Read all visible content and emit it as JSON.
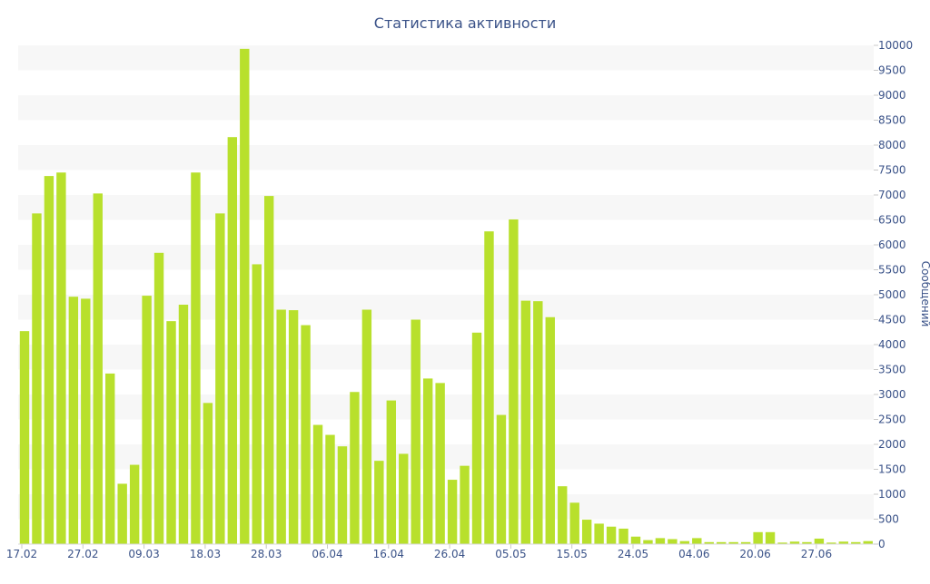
{
  "chart_data": {
    "type": "bar",
    "title": "Статистика активности",
    "xlabel": "",
    "ylabel": "Сообщений",
    "ylim": [
      0,
      10000
    ],
    "y_axis_position": "right",
    "grid": "alternating-horizontal-bands",
    "colors": {
      "bar": "#b8e02c",
      "text": "#3a5288",
      "band": "#f7f7f7"
    },
    "yticks": [
      "0",
      "500",
      "1000",
      "1500",
      "2000",
      "2500",
      "3000",
      "3500",
      "4000",
      "4500",
      "5000",
      "5500",
      "6000",
      "6500",
      "7000",
      "7500",
      "8000",
      "8500",
      "9000",
      "9500",
      "10000"
    ],
    "xticks": [
      {
        "label": "17.02",
        "index": 0
      },
      {
        "label": "27.02",
        "index": 5
      },
      {
        "label": "09.03",
        "index": 10
      },
      {
        "label": "18.03",
        "index": 15
      },
      {
        "label": "28.03",
        "index": 20
      },
      {
        "label": "06.04",
        "index": 25
      },
      {
        "label": "16.04",
        "index": 30
      },
      {
        "label": "26.04",
        "index": 35
      },
      {
        "label": "05.05",
        "index": 40
      },
      {
        "label": "15.05",
        "index": 45
      },
      {
        "label": "24.05",
        "index": 50
      },
      {
        "label": "04.06",
        "index": 55
      },
      {
        "label": "20.06",
        "index": 60
      },
      {
        "label": "27.06",
        "index": 65
      }
    ],
    "values": [
      4270,
      6630,
      7380,
      7450,
      4960,
      4920,
      7030,
      3420,
      1210,
      1590,
      4980,
      5840,
      4470,
      4800,
      7450,
      2830,
      6630,
      8160,
      9930,
      5610,
      6980,
      4700,
      4690,
      4390,
      2390,
      2190,
      1960,
      3050,
      4700,
      1670,
      2880,
      1810,
      4500,
      3320,
      3230,
      1290,
      1570,
      4240,
      6270,
      2590,
      6510,
      4880,
      4870,
      4550,
      1160,
      830,
      490,
      410,
      350,
      310,
      150,
      80,
      120,
      100,
      60,
      120,
      40,
      40,
      40,
      40,
      240,
      240,
      30,
      50,
      40,
      110,
      30,
      50,
      40,
      60
    ]
  }
}
